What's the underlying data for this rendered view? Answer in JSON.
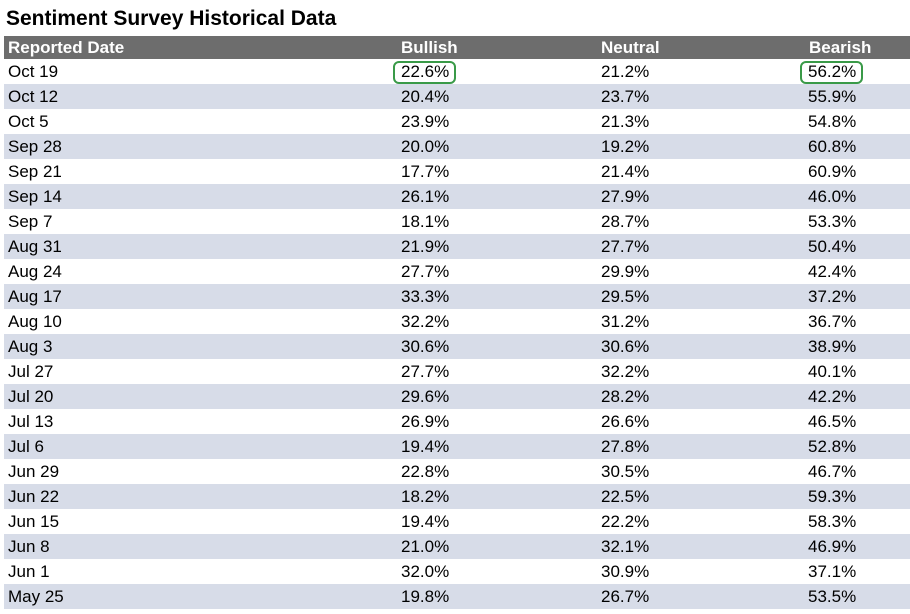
{
  "title": "Sentiment Survey Historical Data",
  "columns": [
    "Reported Date",
    "Bullish",
    "Neutral",
    "Bearish"
  ],
  "rows": [
    {
      "date": "Oct 19",
      "bullish": "22.6%",
      "neutral": "21.2%",
      "bearish": "56.2%"
    },
    {
      "date": "Oct 12",
      "bullish": "20.4%",
      "neutral": "23.7%",
      "bearish": "55.9%"
    },
    {
      "date": "Oct 5",
      "bullish": "23.9%",
      "neutral": "21.3%",
      "bearish": "54.8%"
    },
    {
      "date": "Sep 28",
      "bullish": "20.0%",
      "neutral": "19.2%",
      "bearish": "60.8%"
    },
    {
      "date": "Sep 21",
      "bullish": "17.7%",
      "neutral": "21.4%",
      "bearish": "60.9%"
    },
    {
      "date": "Sep 14",
      "bullish": "26.1%",
      "neutral": "27.9%",
      "bearish": "46.0%"
    },
    {
      "date": "Sep 7",
      "bullish": "18.1%",
      "neutral": "28.7%",
      "bearish": "53.3%"
    },
    {
      "date": "Aug 31",
      "bullish": "21.9%",
      "neutral": "27.7%",
      "bearish": "50.4%"
    },
    {
      "date": "Aug 24",
      "bullish": "27.7%",
      "neutral": "29.9%",
      "bearish": "42.4%"
    },
    {
      "date": "Aug 17",
      "bullish": "33.3%",
      "neutral": "29.5%",
      "bearish": "37.2%"
    },
    {
      "date": "Aug 10",
      "bullish": "32.2%",
      "neutral": "31.2%",
      "bearish": "36.7%"
    },
    {
      "date": "Aug 3",
      "bullish": "30.6%",
      "neutral": "30.6%",
      "bearish": "38.9%"
    },
    {
      "date": "Jul 27",
      "bullish": "27.7%",
      "neutral": "32.2%",
      "bearish": "40.1%"
    },
    {
      "date": "Jul 20",
      "bullish": "29.6%",
      "neutral": "28.2%",
      "bearish": "42.2%"
    },
    {
      "date": "Jul 13",
      "bullish": "26.9%",
      "neutral": "26.6%",
      "bearish": "46.5%"
    },
    {
      "date": "Jul 6",
      "bullish": "19.4%",
      "neutral": "27.8%",
      "bearish": "52.8%"
    },
    {
      "date": "Jun 29",
      "bullish": "22.8%",
      "neutral": "30.5%",
      "bearish": "46.7%"
    },
    {
      "date": "Jun 22",
      "bullish": "18.2%",
      "neutral": "22.5%",
      "bearish": "59.3%"
    },
    {
      "date": "Jun 15",
      "bullish": "19.4%",
      "neutral": "22.2%",
      "bearish": "58.3%"
    },
    {
      "date": "Jun 8",
      "bullish": "21.0%",
      "neutral": "32.1%",
      "bearish": "46.9%"
    },
    {
      "date": "Jun 1",
      "bullish": "32.0%",
      "neutral": "30.9%",
      "bearish": "37.1%"
    },
    {
      "date": "May 25",
      "bullish": "19.8%",
      "neutral": "26.7%",
      "bearish": "53.5%"
    }
  ],
  "highlights": [
    {
      "row": 0,
      "column": "bullish"
    },
    {
      "row": 0,
      "column": "bearish"
    }
  ],
  "colors": {
    "header_bg": "#6d6d6d",
    "header_text": "#ffffff",
    "alt_row_bg": "#d7dce8",
    "highlight_border": "#3a9a48"
  }
}
